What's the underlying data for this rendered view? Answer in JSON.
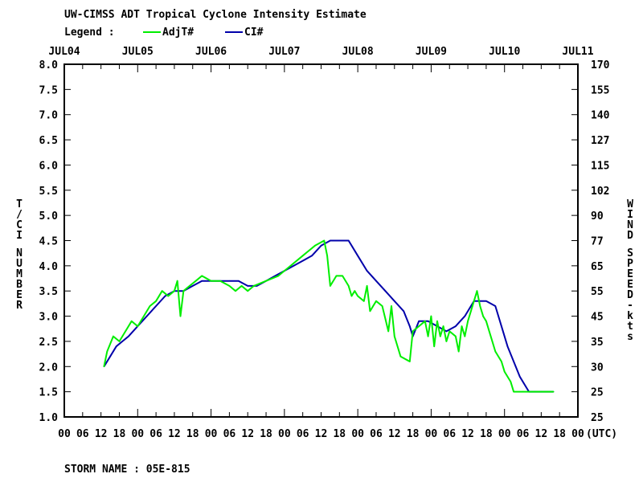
{
  "title": "UW-CIMSS ADT Tropical Cyclone Intensity Estimate",
  "legend": {
    "label": "Legend :",
    "entries": [
      {
        "name": "AdjT#",
        "color": "#00ee00"
      },
      {
        "name": "CI#",
        "color": "#0000aa"
      }
    ]
  },
  "storm_name": "STORM NAME : 05E-815",
  "chart_data": {
    "type": "line",
    "title": "UW-CIMSS ADT Tropical Cyclone Intensity Estimate",
    "xlabel": "(UTC)",
    "ylabel_left": "T/CI NUMBER",
    "ylabel_right": "WIND SPEED-kts",
    "x_unit": "hours since JUL04 00 UTC",
    "xlim": [
      0,
      168
    ],
    "ylim": [
      1.0,
      8.0
    ],
    "day_labels": [
      "JUL04",
      "JUL05",
      "JUL06",
      "JUL07",
      "JUL08",
      "JUL09",
      "JUL10",
      "JUL11"
    ],
    "hour_labels": [
      "00",
      "06",
      "12",
      "18",
      "00",
      "06",
      "12",
      "18",
      "00",
      "06",
      "12",
      "18",
      "00",
      "06",
      "12",
      "18",
      "00",
      "06",
      "12",
      "18",
      "00",
      "06",
      "12",
      "18",
      "00",
      "06",
      "12",
      "18",
      "00"
    ],
    "utc_label": "(UTC)",
    "y_ticks": [
      "1.0",
      "1.5",
      "2.0",
      "2.5",
      "3.0",
      "3.5",
      "4.0",
      "4.5",
      "5.0",
      "5.5",
      "6.0",
      "6.5",
      "7.0",
      "7.5",
      "8.0"
    ],
    "wind_ticks": [
      "25",
      "25",
      "30",
      "35",
      "45",
      "55",
      "65",
      "77",
      "90",
      "102",
      "115",
      "127",
      "140",
      "155",
      "170"
    ],
    "grid": false,
    "legend_position": "top-left",
    "series": [
      {
        "name": "CI#",
        "color": "#0000aa",
        "points": [
          [
            13,
            2.0
          ],
          [
            15,
            2.2
          ],
          [
            17,
            2.4
          ],
          [
            19,
            2.5
          ],
          [
            21,
            2.6
          ],
          [
            24,
            2.8
          ],
          [
            27,
            3.0
          ],
          [
            30,
            3.2
          ],
          [
            33,
            3.4
          ],
          [
            36,
            3.5
          ],
          [
            39,
            3.5
          ],
          [
            42,
            3.6
          ],
          [
            45,
            3.7
          ],
          [
            48,
            3.7
          ],
          [
            51,
            3.7
          ],
          [
            54,
            3.7
          ],
          [
            57,
            3.7
          ],
          [
            60,
            3.6
          ],
          [
            63,
            3.6
          ],
          [
            66,
            3.7
          ],
          [
            69,
            3.8
          ],
          [
            72,
            3.9
          ],
          [
            75,
            4.0
          ],
          [
            78,
            4.1
          ],
          [
            81,
            4.2
          ],
          [
            84,
            4.4
          ],
          [
            87,
            4.5
          ],
          [
            90,
            4.5
          ],
          [
            93,
            4.5
          ],
          [
            96,
            4.2
          ],
          [
            99,
            3.9
          ],
          [
            102,
            3.7
          ],
          [
            105,
            3.5
          ],
          [
            108,
            3.3
          ],
          [
            111,
            3.1
          ],
          [
            113,
            2.8
          ],
          [
            114,
            2.6
          ],
          [
            116,
            2.9
          ],
          [
            119,
            2.9
          ],
          [
            122,
            2.8
          ],
          [
            125,
            2.7
          ],
          [
            128,
            2.8
          ],
          [
            131,
            3.0
          ],
          [
            134,
            3.3
          ],
          [
            138,
            3.3
          ],
          [
            141,
            3.2
          ],
          [
            143,
            2.8
          ],
          [
            145,
            2.4
          ],
          [
            147,
            2.1
          ],
          [
            149,
            1.8
          ],
          [
            151,
            1.6
          ],
          [
            152,
            1.5
          ],
          [
            154,
            1.5
          ],
          [
            156,
            1.5
          ],
          [
            158,
            1.5
          ],
          [
            160,
            1.5
          ]
        ]
      },
      {
        "name": "AdjT#",
        "color": "#00ee00",
        "points": [
          [
            13,
            2.0
          ],
          [
            14,
            2.3
          ],
          [
            16,
            2.6
          ],
          [
            18,
            2.5
          ],
          [
            20,
            2.7
          ],
          [
            22,
            2.9
          ],
          [
            24,
            2.8
          ],
          [
            26,
            3.0
          ],
          [
            28,
            3.2
          ],
          [
            30,
            3.3
          ],
          [
            32,
            3.5
          ],
          [
            34,
            3.4
          ],
          [
            36,
            3.5
          ],
          [
            37,
            3.7
          ],
          [
            38,
            3.0
          ],
          [
            39,
            3.5
          ],
          [
            41,
            3.6
          ],
          [
            43,
            3.7
          ],
          [
            45,
            3.8
          ],
          [
            48,
            3.7
          ],
          [
            51,
            3.7
          ],
          [
            54,
            3.6
          ],
          [
            56,
            3.5
          ],
          [
            58,
            3.6
          ],
          [
            60,
            3.5
          ],
          [
            62,
            3.6
          ],
          [
            66,
            3.7
          ],
          [
            70,
            3.8
          ],
          [
            74,
            4.0
          ],
          [
            78,
            4.2
          ],
          [
            82,
            4.4
          ],
          [
            85,
            4.5
          ],
          [
            86,
            4.2
          ],
          [
            87,
            3.6
          ],
          [
            89,
            3.8
          ],
          [
            91,
            3.8
          ],
          [
            93,
            3.6
          ],
          [
            94,
            3.4
          ],
          [
            95,
            3.5
          ],
          [
            96,
            3.4
          ],
          [
            98,
            3.3
          ],
          [
            99,
            3.6
          ],
          [
            100,
            3.1
          ],
          [
            102,
            3.3
          ],
          [
            104,
            3.2
          ],
          [
            106,
            2.7
          ],
          [
            107,
            3.2
          ],
          [
            108,
            2.6
          ],
          [
            110,
            2.2
          ],
          [
            113,
            2.1
          ],
          [
            114,
            2.7
          ],
          [
            116,
            2.8
          ],
          [
            118,
            2.9
          ],
          [
            119,
            2.6
          ],
          [
            120,
            3.0
          ],
          [
            121,
            2.4
          ],
          [
            122,
            2.9
          ],
          [
            123,
            2.6
          ],
          [
            124,
            2.8
          ],
          [
            125,
            2.5
          ],
          [
            126,
            2.7
          ],
          [
            128,
            2.6
          ],
          [
            129,
            2.3
          ],
          [
            130,
            2.8
          ],
          [
            131,
            2.6
          ],
          [
            132,
            2.9
          ],
          [
            133,
            3.1
          ],
          [
            134,
            3.3
          ],
          [
            135,
            3.5
          ],
          [
            136,
            3.2
          ],
          [
            137,
            3.0
          ],
          [
            138,
            2.9
          ],
          [
            139,
            2.7
          ],
          [
            140,
            2.5
          ],
          [
            141,
            2.3
          ],
          [
            143,
            2.1
          ],
          [
            144,
            1.9
          ],
          [
            146,
            1.7
          ],
          [
            147,
            1.5
          ],
          [
            150,
            1.5
          ],
          [
            155,
            1.5
          ],
          [
            160,
            1.5
          ]
        ]
      }
    ]
  }
}
